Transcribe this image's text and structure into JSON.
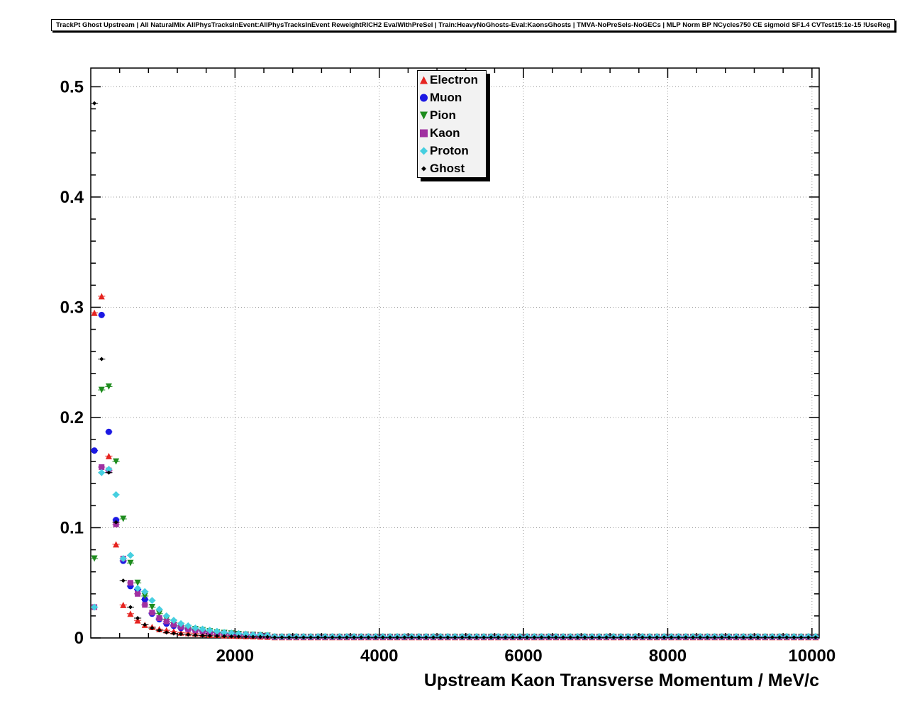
{
  "header": {
    "title": "TrackPt Ghost Upstream | All NaturalMix AllPhysTracksInEvent:AllPhysTracksInEvent ReweightRICH2 EvalWithPreSel | Train:HeavyNoGhosts-Eval:KaonsGhosts | TMVA-NoPreSels-NoGECs | MLP Norm BP NCycles750 CE sigmoid SF1.4 CVTest15:1e-15 !UseReg"
  },
  "chart_data": {
    "type": "scatter",
    "title": "",
    "xlabel": "Upstream Kaon Transverse Momentum / MeV/c",
    "ylabel": "",
    "xlim": [
      0,
      10100
    ],
    "ylim": [
      0,
      0.517
    ],
    "grid": "dotted",
    "grid_color": "#9a9a9a",
    "legend_position": "top-center",
    "x_ticks": {
      "major": [
        2000,
        4000,
        6000,
        8000,
        10000
      ],
      "labels": [
        "2000",
        "4000",
        "6000",
        "8000",
        "10000"
      ],
      "minor_step": 400
    },
    "y_ticks": {
      "major": [
        0,
        0.1,
        0.2,
        0.3,
        0.4,
        0.5
      ],
      "labels": [
        "0",
        "0.1",
        "0.2",
        "0.3",
        "0.4",
        "0.5"
      ],
      "minor_step": 0.02
    },
    "head_x": {
      "start": 50,
      "step": 100,
      "count": 25
    },
    "tail_x": {
      "start": 2550,
      "step": 100,
      "end": 10050
    },
    "bin_half_width": 50,
    "series": [
      {
        "name": "Electron",
        "color": "#e62420",
        "marker": "triangle-up",
        "marker_size": 4.5,
        "head": [
          0.295,
          0.31,
          0.165,
          0.085,
          0.03,
          0.022,
          0.016,
          0.012,
          0.01,
          0.008,
          0.007,
          0.006,
          0.005,
          0.0045,
          0.004,
          0.0035,
          0.003,
          0.003,
          0.0025,
          0.0022,
          0.002,
          0.0018,
          0.0016,
          0.0014,
          0.0012
        ],
        "tail_value": 0.0008
      },
      {
        "name": "Muon",
        "color": "#1b18e3",
        "marker": "circle",
        "marker_size": 4.5,
        "head": [
          0.17,
          0.293,
          0.187,
          0.107,
          0.07,
          0.047,
          0.044,
          0.035,
          0.022,
          0.017,
          0.013,
          0.011,
          0.009,
          0.008,
          0.007,
          0.006,
          0.005,
          0.0045,
          0.004,
          0.0035,
          0.003,
          0.0028,
          0.0025,
          0.0022,
          0.002
        ],
        "tail_value": 0.0012
      },
      {
        "name": "Pion",
        "color": "#1e8c1e",
        "marker": "triangle-down",
        "marker_size": 4.5,
        "head": [
          0.072,
          0.225,
          0.228,
          0.16,
          0.108,
          0.068,
          0.05,
          0.038,
          0.028,
          0.022,
          0.017,
          0.014,
          0.011,
          0.009,
          0.008,
          0.007,
          0.006,
          0.005,
          0.0045,
          0.004,
          0.0035,
          0.003,
          0.0027,
          0.0024,
          0.002
        ],
        "tail_value": 0.001
      },
      {
        "name": "Kaon",
        "color": "#a030a0",
        "marker": "square",
        "marker_size": 4,
        "head": [
          0.028,
          0.155,
          0.152,
          0.103,
          0.072,
          0.05,
          0.04,
          0.03,
          0.023,
          0.018,
          0.015,
          0.012,
          0.01,
          0.008,
          0.007,
          0.006,
          0.005,
          0.0045,
          0.004,
          0.0035,
          0.003,
          0.0028,
          0.0025,
          0.0022,
          0.002
        ],
        "tail_value": 0.0008
      },
      {
        "name": "Proton",
        "color": "#46cfe0",
        "marker": "diamond",
        "marker_size": 5,
        "head": [
          0.028,
          0.15,
          0.153,
          0.13,
          0.072,
          0.075,
          0.045,
          0.042,
          0.034,
          0.026,
          0.02,
          0.016,
          0.013,
          0.011,
          0.009,
          0.008,
          0.007,
          0.006,
          0.005,
          0.0045,
          0.004,
          0.0035,
          0.003,
          0.0027,
          0.0024
        ],
        "tail_value": 0.0012
      },
      {
        "name": "Ghost",
        "color": "#000000",
        "marker": "diamond",
        "marker_size": 3,
        "head": [
          0.485,
          0.253,
          0.15,
          0.105,
          0.052,
          0.028,
          0.018,
          0.012,
          0.009,
          0.007,
          0.005,
          0.004,
          0.0035,
          0.003,
          0.0025,
          0.0022,
          0.002,
          0.0018,
          0.0016,
          0.0014,
          0.0012,
          0.0011,
          0.001,
          0.001,
          0.001
        ],
        "tail_value": 0.0005
      }
    ]
  }
}
